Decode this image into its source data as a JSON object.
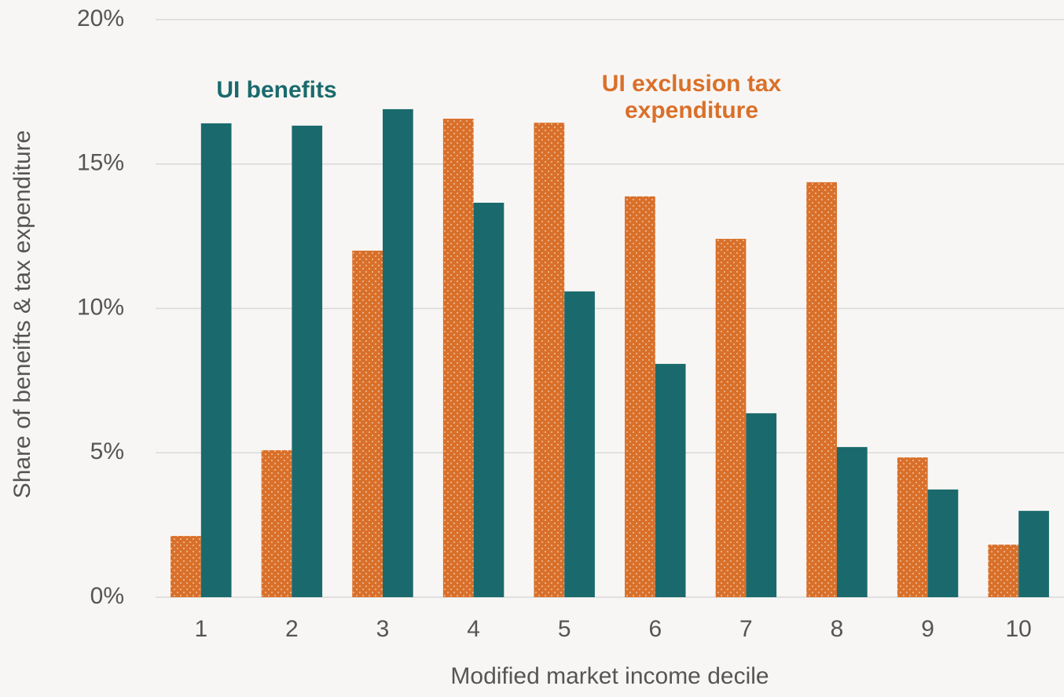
{
  "chart_data": {
    "type": "bar",
    "x_label": "Modified market income decile",
    "y_label": "Share of beneifts & tax expenditure",
    "categories": [
      "1",
      "2",
      "3",
      "4",
      "5",
      "6",
      "7",
      "8",
      "9",
      "10"
    ],
    "series": [
      {
        "name": "UI exclusion tax expenditure",
        "color": "#d9702a",
        "pattern": "dots",
        "values": [
          2.12,
          5.09,
          12.0,
          16.57,
          16.43,
          13.88,
          12.41,
          14.37,
          4.84,
          1.82
        ]
      },
      {
        "name": "UI benefits",
        "color": "#1a6a6d",
        "values": [
          16.41,
          16.33,
          16.9,
          13.66,
          10.59,
          8.08,
          6.37,
          5.2,
          3.73,
          2.99
        ]
      }
    ],
    "ylim": [
      0,
      20
    ],
    "yticks": [
      {
        "value": 0,
        "label": "0%"
      },
      {
        "value": 5,
        "label": "5%"
      },
      {
        "value": 10,
        "label": "10%"
      },
      {
        "value": 15,
        "label": "15%"
      },
      {
        "value": 20,
        "label": "20%"
      }
    ],
    "grid": true
  }
}
